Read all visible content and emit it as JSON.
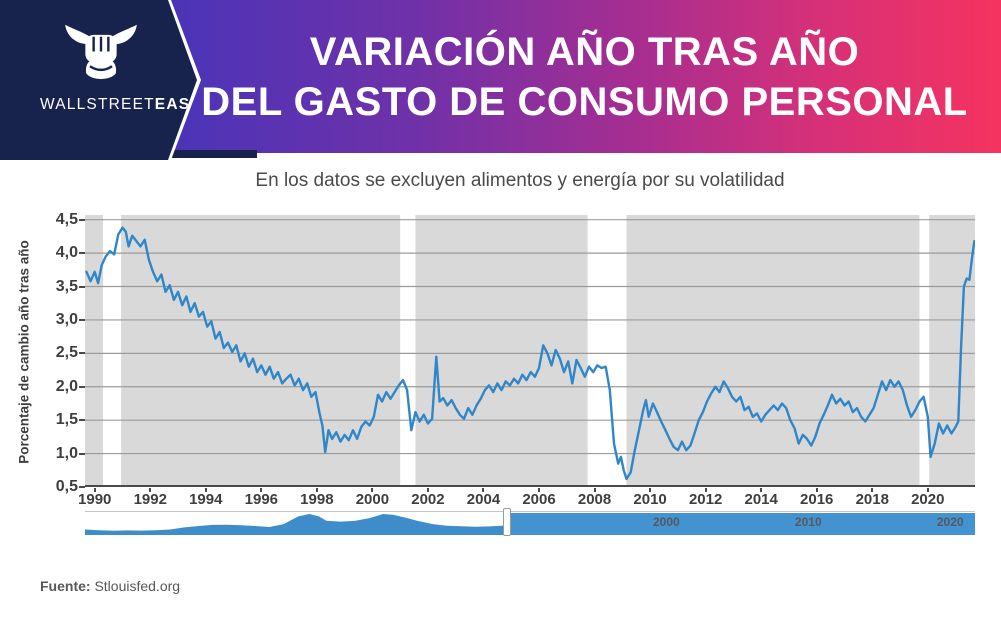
{
  "header": {
    "brand_regular": "WALLSTREET",
    "brand_bold": "EASY",
    "title_line1": "VARIACIÓN AÑO TRAS AÑO",
    "title_line2": "DEL GASTO DE CONSUMO PERSONAL",
    "colors": {
      "navy": "#17224d",
      "gradient_start": "#4a34b8",
      "gradient_end": "#f5335f"
    }
  },
  "subtitle": "En los datos se excluyen alimentos y energía por su volatilidad",
  "footer": {
    "label": "Fuente:",
    "source": " Stlouisfed.org"
  },
  "chart_data": {
    "type": "line",
    "title": "Variación año tras año del gasto de consumo personal (excluye alimentos y energía)",
    "xlabel": "",
    "ylabel": "Porcentaje de cambio año tras año",
    "x_range": [
      1989.65,
      2021.7
    ],
    "y_range": [
      0.5,
      4.57
    ],
    "grid": "horizontal",
    "legend_position": "none",
    "plot_bg": "#d9d9d9",
    "grid_color": "#9b9b9b",
    "line_color": "#2f86c9",
    "recession_band_color": "#ffffff",
    "y_ticks": [
      {
        "value": 4.5,
        "label": "4,5"
      },
      {
        "value": 4.0,
        "label": "4,0"
      },
      {
        "value": 3.5,
        "label": "3,5"
      },
      {
        "value": 3.0,
        "label": "3,0"
      },
      {
        "value": 2.5,
        "label": "2,5"
      },
      {
        "value": 2.0,
        "label": "2,0"
      },
      {
        "value": 1.5,
        "label": "1,5"
      },
      {
        "value": 1.0,
        "label": "1,0"
      },
      {
        "value": 0.5,
        "label": "0,5"
      }
    ],
    "x_ticks": [
      {
        "value": 1990,
        "label": "1990"
      },
      {
        "value": 1992,
        "label": "1992"
      },
      {
        "value": 1994,
        "label": "1994"
      },
      {
        "value": 1996,
        "label": "1996"
      },
      {
        "value": 1998,
        "label": "1998"
      },
      {
        "value": 2000,
        "label": "2000"
      },
      {
        "value": 2002,
        "label": "2002"
      },
      {
        "value": 2004,
        "label": "2004"
      },
      {
        "value": 2006,
        "label": "2006"
      },
      {
        "value": 2008,
        "label": "2008"
      },
      {
        "value": 2010,
        "label": "2010"
      },
      {
        "value": 2012,
        "label": "2012"
      },
      {
        "value": 2014,
        "label": "2014"
      },
      {
        "value": 2016,
        "label": "2016"
      },
      {
        "value": 2018,
        "label": "2018"
      },
      {
        "value": 2020,
        "label": "2020"
      }
    ],
    "recession_bands": [
      [
        1990.3,
        1990.95
      ],
      [
        2001.0,
        2001.55
      ],
      [
        2007.75,
        2009.15
      ],
      [
        2019.7,
        2020.05
      ]
    ],
    "series": [
      {
        "name": "Gasto de consumo personal, variación % año tras año",
        "points": [
          [
            1989.7,
            3.72
          ],
          [
            1989.85,
            3.58
          ],
          [
            1990.0,
            3.72
          ],
          [
            1990.12,
            3.55
          ],
          [
            1990.25,
            3.82
          ],
          [
            1990.4,
            3.95
          ],
          [
            1990.55,
            4.03
          ],
          [
            1990.7,
            3.98
          ],
          [
            1990.85,
            4.28
          ],
          [
            1991.0,
            4.38
          ],
          [
            1991.12,
            4.32
          ],
          [
            1991.22,
            4.1
          ],
          [
            1991.35,
            4.26
          ],
          [
            1991.5,
            4.18
          ],
          [
            1991.65,
            4.1
          ],
          [
            1991.8,
            4.2
          ],
          [
            1991.95,
            3.9
          ],
          [
            1992.1,
            3.72
          ],
          [
            1992.25,
            3.58
          ],
          [
            1992.4,
            3.68
          ],
          [
            1992.55,
            3.42
          ],
          [
            1992.7,
            3.52
          ],
          [
            1992.85,
            3.3
          ],
          [
            1993.0,
            3.42
          ],
          [
            1993.15,
            3.22
          ],
          [
            1993.3,
            3.35
          ],
          [
            1993.45,
            3.12
          ],
          [
            1993.6,
            3.25
          ],
          [
            1993.75,
            3.05
          ],
          [
            1993.9,
            3.12
          ],
          [
            1994.05,
            2.9
          ],
          [
            1994.2,
            2.98
          ],
          [
            1994.35,
            2.72
          ],
          [
            1994.5,
            2.82
          ],
          [
            1994.65,
            2.58
          ],
          [
            1994.8,
            2.66
          ],
          [
            1994.95,
            2.52
          ],
          [
            1995.1,
            2.62
          ],
          [
            1995.25,
            2.38
          ],
          [
            1995.4,
            2.5
          ],
          [
            1995.55,
            2.3
          ],
          [
            1995.7,
            2.42
          ],
          [
            1995.85,
            2.22
          ],
          [
            1996.0,
            2.32
          ],
          [
            1996.15,
            2.18
          ],
          [
            1996.3,
            2.3
          ],
          [
            1996.45,
            2.12
          ],
          [
            1996.6,
            2.22
          ],
          [
            1996.75,
            2.05
          ],
          [
            1996.9,
            2.12
          ],
          [
            1997.05,
            2.18
          ],
          [
            1997.2,
            2.02
          ],
          [
            1997.35,
            2.12
          ],
          [
            1997.5,
            1.95
          ],
          [
            1997.65,
            2.05
          ],
          [
            1997.8,
            1.85
          ],
          [
            1997.95,
            1.92
          ],
          [
            1998.1,
            1.6
          ],
          [
            1998.2,
            1.42
          ],
          [
            1998.3,
            1.02
          ],
          [
            1998.42,
            1.35
          ],
          [
            1998.55,
            1.22
          ],
          [
            1998.7,
            1.32
          ],
          [
            1998.85,
            1.18
          ],
          [
            1999.0,
            1.28
          ],
          [
            1999.15,
            1.2
          ],
          [
            1999.3,
            1.35
          ],
          [
            1999.45,
            1.22
          ],
          [
            1999.6,
            1.4
          ],
          [
            1999.75,
            1.48
          ],
          [
            1999.9,
            1.42
          ],
          [
            2000.05,
            1.55
          ],
          [
            2000.2,
            1.88
          ],
          [
            2000.35,
            1.78
          ],
          [
            2000.5,
            1.92
          ],
          [
            2000.65,
            1.82
          ],
          [
            2000.8,
            1.92
          ],
          [
            2000.95,
            2.02
          ],
          [
            2001.1,
            2.1
          ],
          [
            2001.25,
            1.95
          ],
          [
            2001.4,
            1.35
          ],
          [
            2001.55,
            1.62
          ],
          [
            2001.7,
            1.48
          ],
          [
            2001.85,
            1.58
          ],
          [
            2002.0,
            1.45
          ],
          [
            2002.15,
            1.52
          ],
          [
            2002.3,
            2.45
          ],
          [
            2002.42,
            1.78
          ],
          [
            2002.55,
            1.83
          ],
          [
            2002.7,
            1.72
          ],
          [
            2002.85,
            1.8
          ],
          [
            2003.0,
            1.68
          ],
          [
            2003.15,
            1.58
          ],
          [
            2003.3,
            1.52
          ],
          [
            2003.45,
            1.68
          ],
          [
            2003.6,
            1.58
          ],
          [
            2003.75,
            1.72
          ],
          [
            2003.9,
            1.82
          ],
          [
            2004.05,
            1.95
          ],
          [
            2004.2,
            2.02
          ],
          [
            2004.35,
            1.92
          ],
          [
            2004.5,
            2.05
          ],
          [
            2004.65,
            1.95
          ],
          [
            2004.8,
            2.08
          ],
          [
            2004.95,
            2.02
          ],
          [
            2005.1,
            2.12
          ],
          [
            2005.25,
            2.05
          ],
          [
            2005.4,
            2.18
          ],
          [
            2005.55,
            2.1
          ],
          [
            2005.7,
            2.22
          ],
          [
            2005.85,
            2.15
          ],
          [
            2006.0,
            2.28
          ],
          [
            2006.15,
            2.62
          ],
          [
            2006.3,
            2.5
          ],
          [
            2006.45,
            2.32
          ],
          [
            2006.6,
            2.55
          ],
          [
            2006.75,
            2.42
          ],
          [
            2006.9,
            2.22
          ],
          [
            2007.05,
            2.38
          ],
          [
            2007.2,
            2.05
          ],
          [
            2007.35,
            2.4
          ],
          [
            2007.5,
            2.28
          ],
          [
            2007.65,
            2.15
          ],
          [
            2007.8,
            2.3
          ],
          [
            2007.95,
            2.22
          ],
          [
            2008.1,
            2.32
          ],
          [
            2008.25,
            2.28
          ],
          [
            2008.4,
            2.3
          ],
          [
            2008.55,
            1.95
          ],
          [
            2008.7,
            1.15
          ],
          [
            2008.85,
            0.85
          ],
          [
            2008.95,
            0.95
          ],
          [
            2009.05,
            0.75
          ],
          [
            2009.15,
            0.62
          ],
          [
            2009.3,
            0.72
          ],
          [
            2009.45,
            1.05
          ],
          [
            2009.6,
            1.35
          ],
          [
            2009.75,
            1.65
          ],
          [
            2009.85,
            1.8
          ],
          [
            2009.95,
            1.55
          ],
          [
            2010.1,
            1.75
          ],
          [
            2010.25,
            1.62
          ],
          [
            2010.4,
            1.48
          ],
          [
            2010.55,
            1.35
          ],
          [
            2010.7,
            1.22
          ],
          [
            2010.85,
            1.1
          ],
          [
            2011.0,
            1.05
          ],
          [
            2011.15,
            1.18
          ],
          [
            2011.3,
            1.05
          ],
          [
            2011.45,
            1.12
          ],
          [
            2011.6,
            1.3
          ],
          [
            2011.75,
            1.5
          ],
          [
            2011.9,
            1.62
          ],
          [
            2012.05,
            1.78
          ],
          [
            2012.2,
            1.9
          ],
          [
            2012.35,
            2.0
          ],
          [
            2012.5,
            1.92
          ],
          [
            2012.65,
            2.08
          ],
          [
            2012.8,
            1.98
          ],
          [
            2012.95,
            1.85
          ],
          [
            2013.1,
            1.78
          ],
          [
            2013.25,
            1.85
          ],
          [
            2013.4,
            1.65
          ],
          [
            2013.55,
            1.7
          ],
          [
            2013.7,
            1.55
          ],
          [
            2013.85,
            1.6
          ],
          [
            2014.0,
            1.48
          ],
          [
            2014.15,
            1.58
          ],
          [
            2014.3,
            1.65
          ],
          [
            2014.45,
            1.72
          ],
          [
            2014.6,
            1.65
          ],
          [
            2014.75,
            1.75
          ],
          [
            2014.9,
            1.68
          ],
          [
            2015.05,
            1.5
          ],
          [
            2015.2,
            1.38
          ],
          [
            2015.35,
            1.15
          ],
          [
            2015.5,
            1.28
          ],
          [
            2015.65,
            1.22
          ],
          [
            2015.8,
            1.12
          ],
          [
            2015.95,
            1.25
          ],
          [
            2016.1,
            1.45
          ],
          [
            2016.25,
            1.58
          ],
          [
            2016.4,
            1.72
          ],
          [
            2016.55,
            1.88
          ],
          [
            2016.7,
            1.75
          ],
          [
            2016.85,
            1.82
          ],
          [
            2017.0,
            1.72
          ],
          [
            2017.15,
            1.78
          ],
          [
            2017.3,
            1.62
          ],
          [
            2017.45,
            1.68
          ],
          [
            2017.6,
            1.55
          ],
          [
            2017.75,
            1.48
          ],
          [
            2017.9,
            1.58
          ],
          [
            2018.05,
            1.68
          ],
          [
            2018.2,
            1.88
          ],
          [
            2018.35,
            2.08
          ],
          [
            2018.5,
            1.95
          ],
          [
            2018.65,
            2.1
          ],
          [
            2018.8,
            2.0
          ],
          [
            2018.95,
            2.08
          ],
          [
            2019.1,
            1.95
          ],
          [
            2019.25,
            1.72
          ],
          [
            2019.4,
            1.55
          ],
          [
            2019.55,
            1.65
          ],
          [
            2019.7,
            1.78
          ],
          [
            2019.85,
            1.85
          ],
          [
            2020.0,
            1.55
          ],
          [
            2020.1,
            0.95
          ],
          [
            2020.25,
            1.15
          ],
          [
            2020.4,
            1.45
          ],
          [
            2020.55,
            1.3
          ],
          [
            2020.7,
            1.42
          ],
          [
            2020.85,
            1.3
          ],
          [
            2021.0,
            1.4
          ],
          [
            2021.1,
            1.48
          ],
          [
            2021.2,
            2.6
          ],
          [
            2021.3,
            3.5
          ],
          [
            2021.4,
            3.62
          ],
          [
            2021.5,
            3.6
          ],
          [
            2021.6,
            3.95
          ],
          [
            2021.68,
            4.18
          ]
        ]
      }
    ]
  },
  "navigator": {
    "range": [
      1959,
      2021.7
    ],
    "selection_start": 1988.7,
    "vmax": 10,
    "bar_color": "#4493d1",
    "area_color": "#3e8cca",
    "label_color": "#55595e",
    "labels": [
      {
        "value": 2000,
        "label": "2000"
      },
      {
        "value": 2010,
        "label": "2010"
      },
      {
        "value": 2020,
        "label": "2020"
      }
    ],
    "area_points": [
      [
        1959,
        2.6
      ],
      [
        1960,
        2.3
      ],
      [
        1961,
        2.0
      ],
      [
        1962,
        2.2
      ],
      [
        1963,
        2.1
      ],
      [
        1964,
        2.3
      ],
      [
        1965,
        2.6
      ],
      [
        1966,
        3.6
      ],
      [
        1967,
        4.3
      ],
      [
        1968,
        4.8
      ],
      [
        1969,
        4.9
      ],
      [
        1970,
        4.6
      ],
      [
        1971,
        4.3
      ],
      [
        1972,
        3.8
      ],
      [
        1973,
        5.2
      ],
      [
        1974,
        8.8
      ],
      [
        1974.8,
        10.0
      ],
      [
        1975.5,
        8.8
      ],
      [
        1976,
        6.8
      ],
      [
        1977,
        6.4
      ],
      [
        1978,
        6.7
      ],
      [
        1979,
        8.0
      ],
      [
        1980,
        10.0
      ],
      [
        1980.7,
        9.6
      ],
      [
        1981.5,
        8.4
      ],
      [
        1982.5,
        6.6
      ],
      [
        1983.5,
        5.2
      ],
      [
        1984.5,
        4.4
      ],
      [
        1985.5,
        4.2
      ],
      [
        1986.5,
        3.9
      ],
      [
        1987.5,
        4.1
      ],
      [
        1988.7,
        4.5
      ]
    ]
  }
}
